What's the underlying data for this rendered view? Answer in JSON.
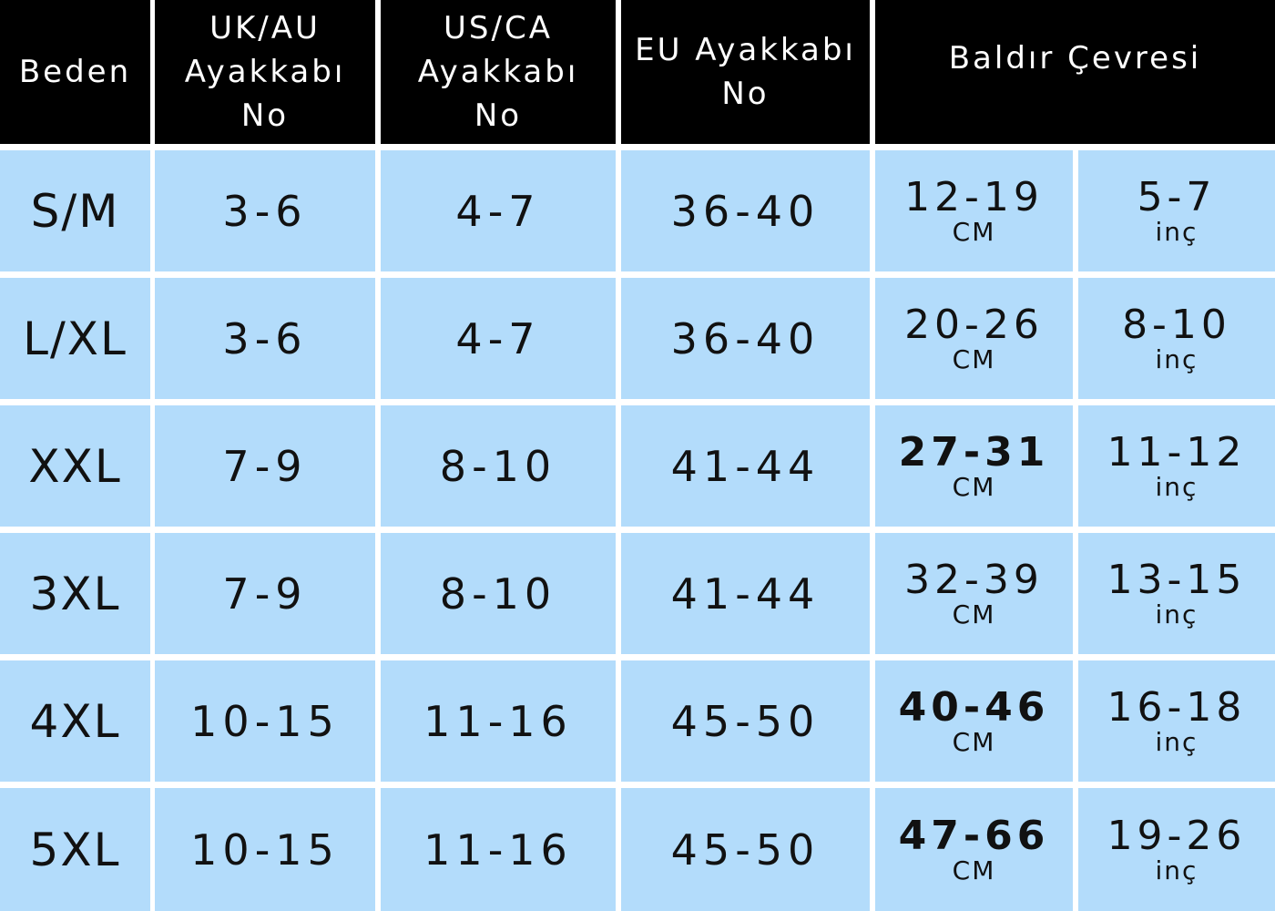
{
  "table": {
    "header": [
      [
        "Beden"
      ],
      [
        "UK/AU",
        "Ayakkabı",
        "No"
      ],
      [
        "US/CA",
        "Ayakkabı",
        "No"
      ],
      [
        "EU Ayakkabı",
        "No"
      ],
      [
        "Baldır Çevresi"
      ]
    ],
    "rows": [
      [
        "S/M",
        "3-6",
        "4-7",
        "36-40",
        {
          "value": "12-19",
          "unit": "CM"
        },
        {
          "value": "5-7",
          "unit": "inç"
        }
      ],
      [
        "L/XL",
        "3-6",
        "4-7",
        "36-40",
        {
          "value": "20-26",
          "unit": "CM"
        },
        {
          "value": "8-10",
          "unit": "inç"
        }
      ],
      [
        "XXL",
        "7-9",
        "8-10",
        "41-44",
        {
          "value": "27-31",
          "unit": "CM"
        },
        {
          "value": "11-12",
          "unit": "inç"
        }
      ],
      [
        "3XL",
        "7-9",
        "8-10",
        "41-44",
        {
          "value": "32-39",
          "unit": "CM"
        },
        {
          "value": "13-15",
          "unit": "inç"
        }
      ],
      [
        "4XL",
        "10-15",
        "11-16",
        "45-50",
        {
          "value": "40-46",
          "unit": "CM"
        },
        {
          "value": "16-18",
          "unit": "inç"
        }
      ],
      [
        "5XL",
        "10-15",
        "11-16",
        "45-50",
        {
          "value": "47-66",
          "unit": "CM"
        },
        {
          "value": "19-26",
          "unit": "inç"
        }
      ]
    ]
  }
}
